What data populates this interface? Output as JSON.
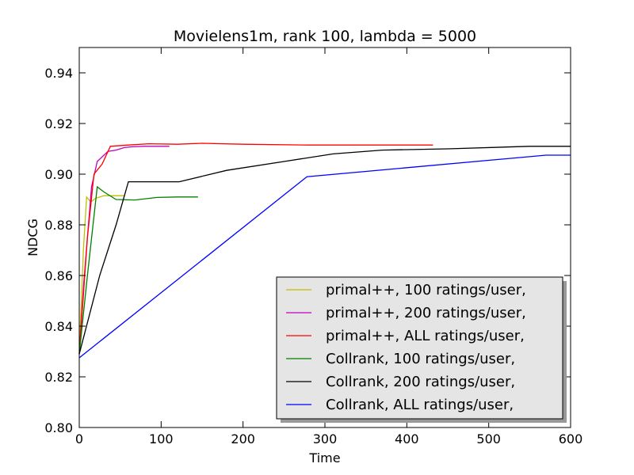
{
  "chart_data": {
    "type": "line",
    "title": "Movielens1m, rank 100, lambda = 5000",
    "xlabel": "Time",
    "ylabel": "NDCG",
    "xlim": [
      0,
      600
    ],
    "ylim": [
      0.8,
      0.95
    ],
    "xticks": [
      0,
      100,
      200,
      300,
      400,
      500,
      600
    ],
    "yticks": [
      0.8,
      0.82,
      0.84,
      0.86,
      0.88,
      0.9,
      0.92,
      0.94
    ],
    "xtick_labels": [
      "0",
      "100",
      "200",
      "300",
      "400",
      "500",
      "600"
    ],
    "ytick_labels": [
      "0.80",
      "0.82",
      "0.84",
      "0.86",
      "0.88",
      "0.90",
      "0.92",
      "0.94"
    ],
    "grid": false,
    "legend_position": "lower-right",
    "series": [
      {
        "name": "primal++, 100 ratings/user,",
        "color": "#bfbf00",
        "x": [
          0,
          5,
          9,
          14,
          20,
          30,
          40,
          55
        ],
        "y": [
          0.829,
          0.87,
          0.891,
          0.889,
          0.8905,
          0.8915,
          0.8915,
          0.8915
        ]
      },
      {
        "name": "primal++, 200 ratings/user,",
        "color": "#bf00bf",
        "x": [
          0,
          5,
          10,
          15,
          22,
          35,
          45,
          55,
          65,
          80,
          110
        ],
        "y": [
          0.829,
          0.855,
          0.875,
          0.895,
          0.905,
          0.909,
          0.9095,
          0.9105,
          0.9108,
          0.911,
          0.911
        ]
      },
      {
        "name": "primal++, ALL ratings/user,",
        "color": "#ff0000",
        "x": [
          0,
          10,
          18,
          28,
          38,
          60,
          85,
          120,
          150,
          200,
          280,
          350,
          432
        ],
        "y": [
          0.829,
          0.875,
          0.9,
          0.904,
          0.911,
          0.9115,
          0.912,
          0.9118,
          0.9122,
          0.9118,
          0.9115,
          0.9115,
          0.9115
        ]
      },
      {
        "name": "Collrank, 100 ratings/user,",
        "color": "#008000",
        "x": [
          0,
          10,
          22,
          30,
          45,
          68,
          95,
          120,
          145
        ],
        "y": [
          0.829,
          0.86,
          0.895,
          0.893,
          0.89,
          0.8898,
          0.8908,
          0.891,
          0.891
        ]
      },
      {
        "name": "Collrank, 200 ratings/user,",
        "color": "#000000",
        "x": [
          0,
          25,
          45,
          60,
          90,
          122,
          180,
          250,
          310,
          370,
          450,
          550,
          600
        ],
        "y": [
          0.829,
          0.86,
          0.88,
          0.897,
          0.897,
          0.897,
          0.9015,
          0.905,
          0.908,
          0.9095,
          0.91,
          0.911,
          0.911
        ]
      },
      {
        "name": "Collrank, ALL ratings/user,",
        "color": "#0000ff",
        "x": [
          0,
          278,
          570,
          600
        ],
        "y": [
          0.8275,
          0.899,
          0.9075,
          0.9075
        ]
      }
    ]
  }
}
